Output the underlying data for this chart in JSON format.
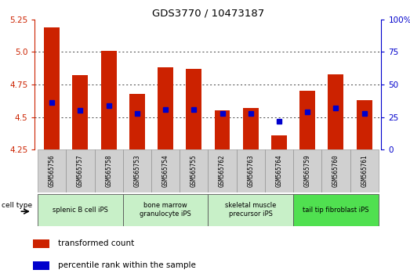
{
  "title": "GDS3770 / 10473187",
  "samples": [
    "GSM565756",
    "GSM565757",
    "GSM565758",
    "GSM565753",
    "GSM565754",
    "GSM565755",
    "GSM565762",
    "GSM565763",
    "GSM565764",
    "GSM565759",
    "GSM565760",
    "GSM565761"
  ],
  "transformed_counts": [
    5.19,
    4.82,
    5.01,
    4.68,
    4.88,
    4.87,
    4.55,
    4.57,
    4.36,
    4.7,
    4.83,
    4.63
  ],
  "percentile_ranks": [
    36,
    30,
    34,
    28,
    31,
    31,
    28,
    28,
    22,
    29,
    32,
    28
  ],
  "cell_types": [
    {
      "label": "splenic B cell iPS",
      "start": 0,
      "end": 3,
      "color": "#c8f0c8"
    },
    {
      "label": "bone marrow\ngranulocyte iPS",
      "start": 3,
      "end": 6,
      "color": "#c8f0c8"
    },
    {
      "label": "skeletal muscle\nprecursor iPS",
      "start": 6,
      "end": 9,
      "color": "#c8f0c8"
    },
    {
      "label": "tail tip fibroblast iPS",
      "start": 9,
      "end": 12,
      "color": "#50e050"
    }
  ],
  "ylim_left": [
    4.25,
    5.25
  ],
  "ylim_right": [
    0,
    100
  ],
  "yticks_left": [
    4.25,
    4.5,
    4.75,
    5.0,
    5.25
  ],
  "yticks_right": [
    0,
    25,
    50,
    75,
    100
  ],
  "bar_color": "#cc2200",
  "marker_color": "#0000cc",
  "bar_width": 0.55,
  "tick_color_left": "#cc2200",
  "tick_color_right": "#0000cc",
  "xtick_box_color": "#d0d0d0",
  "cell_type_colors": [
    "#c8f0c8",
    "#c8f0c8",
    "#c8f0c8",
    "#50e050"
  ]
}
